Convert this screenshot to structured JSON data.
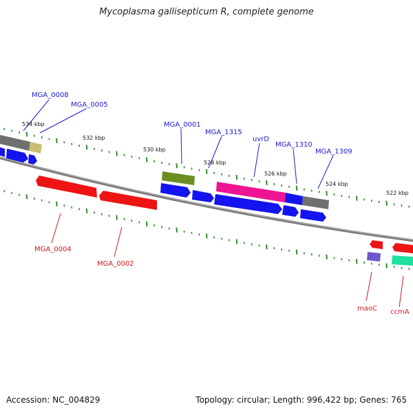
{
  "title": "Mycoplasma gallisepticum R, complete genome",
  "footer": {
    "accession": "Accession: NC_004829",
    "topology": "Topology: circular; Length: 996,422 bp; Genes: 765"
  },
  "colors": {
    "backbone": "#7a7a7a",
    "tick": "#2e8b2e",
    "forward_label": "#1a1acc",
    "reverse_label": "#cc1a1a",
    "blue": "#1414ee",
    "red": "#ee1414",
    "gray": "#707070",
    "olive": "#6b8e23",
    "khaki": "#c8c070",
    "magenta": "#ee1493",
    "lavender": "#6a5acd",
    "teal": "#20e0a0"
  },
  "scale_labels": [
    "534 kbp",
    "532 kbp",
    "530 kbp",
    "528 kbp",
    "526 kbp",
    "524 kbp",
    "522 kbp"
  ],
  "forward_gene_labels": [
    "MGA_0008",
    "MGA_0005",
    "MGA_0001",
    "MGA_1315",
    "uvrD",
    "MGA_1310",
    "MGA_1309"
  ],
  "reverse_gene_labels": [
    "MGA_0004",
    "MGA_0002",
    "maoC",
    "ccmA"
  ]
}
